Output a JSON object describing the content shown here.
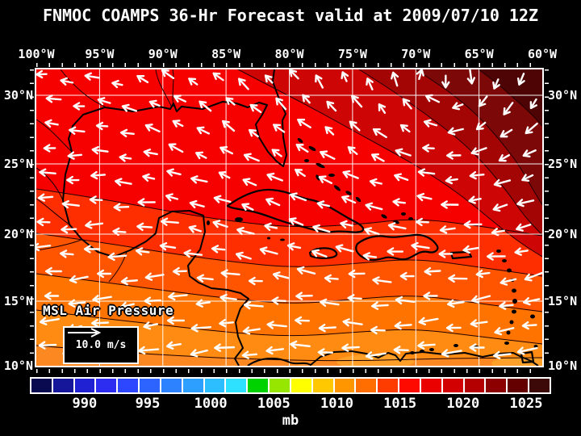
{
  "title": "FNMOC COAMPS 36-Hr Forecast valid at 2009/07/10 12Z",
  "map": {
    "top_axis_labels": [
      "100°W",
      "95°W",
      "90°W",
      "85°W",
      "80°W",
      "75°W",
      "70°W",
      "65°W",
      "60°W"
    ],
    "left_axis_labels": [
      "30°N",
      "25°N",
      "20°N",
      "15°N",
      "10°N"
    ],
    "right_axis_labels": [
      "30°N",
      "25°N",
      "20°N",
      "15°N",
      "10°N"
    ],
    "field_label": "MSL Air Pressure",
    "wind_legend_label": "10.0 m/s",
    "grid_color": "#ffffff",
    "coast_color": "#000000",
    "arrow_color": "#ffffff",
    "band_colors": [
      "#f60000",
      "#ff2e00",
      "#ff5500",
      "#ff7300",
      "#ff8b12",
      "#fb8820",
      "#ffa128"
    ],
    "ridge_colors": [
      "#cd0505",
      "#a30505",
      "#7c0808",
      "#4e0404"
    ]
  },
  "colorbar": {
    "tick_labels": [
      "990",
      "995",
      "1000",
      "1005",
      "1010",
      "1015",
      "1020",
      "1025"
    ],
    "unit_label": "mb",
    "colors": [
      "#0a0a50",
      "#16169b",
      "#2121d4",
      "#2d2df2",
      "#2d46ff",
      "#2d64ff",
      "#2d82ff",
      "#2da0ff",
      "#2dbeff",
      "#2de1ff",
      "#00d200",
      "#96e600",
      "#ffff00",
      "#ffc800",
      "#ff9600",
      "#ff6e00",
      "#ff3c00",
      "#ff0a00",
      "#eb0000",
      "#d20000",
      "#b40000",
      "#8c0000",
      "#640000",
      "#3c0808"
    ]
  },
  "chart_data": {
    "type": "heatmap",
    "subtype": "filled contour weather map with wind vector overlay",
    "title": "FNMOC COAMPS 36-Hr Forecast valid at 2009/07/10 12Z",
    "model": "FNMOC COAMPS",
    "forecast_hour": 36,
    "valid_time": "2009/07/10 12Z",
    "variable": "MSL Air Pressure",
    "units": "mb",
    "x_axis": {
      "label": "longitude",
      "ticks": [
        "100°W",
        "95°W",
        "90°W",
        "85°W",
        "80°W",
        "75°W",
        "70°W",
        "65°W",
        "60°W"
      ]
    },
    "y_axis": {
      "label": "latitude",
      "ticks": [
        "30°N",
        "25°N",
        "20°N",
        "15°N",
        "10°N"
      ]
    },
    "colorbar": {
      "tick_values_mb": [
        990,
        995,
        1000,
        1005,
        1010,
        1015,
        1020,
        1025
      ],
      "approx_range_mb": [
        986,
        1026
      ],
      "n_cells": 24
    },
    "wind_reference_m_per_s": 10.0,
    "field_summary": [
      {
        "feature": "subtropical high",
        "location": "northeast corner near 30°N 62°W",
        "approx_pressure_mb": 1024
      },
      {
        "feature": "meridional gradient",
        "description": "pressure falls from ~1022 mb in the northeast to ~1011 mb along 10°N in the south"
      },
      {
        "feature": "winds",
        "description": "easterly trade winds (~10 m/s) across the Caribbean with clockwise flow around the Atlantic subtropical high"
      }
    ]
  }
}
